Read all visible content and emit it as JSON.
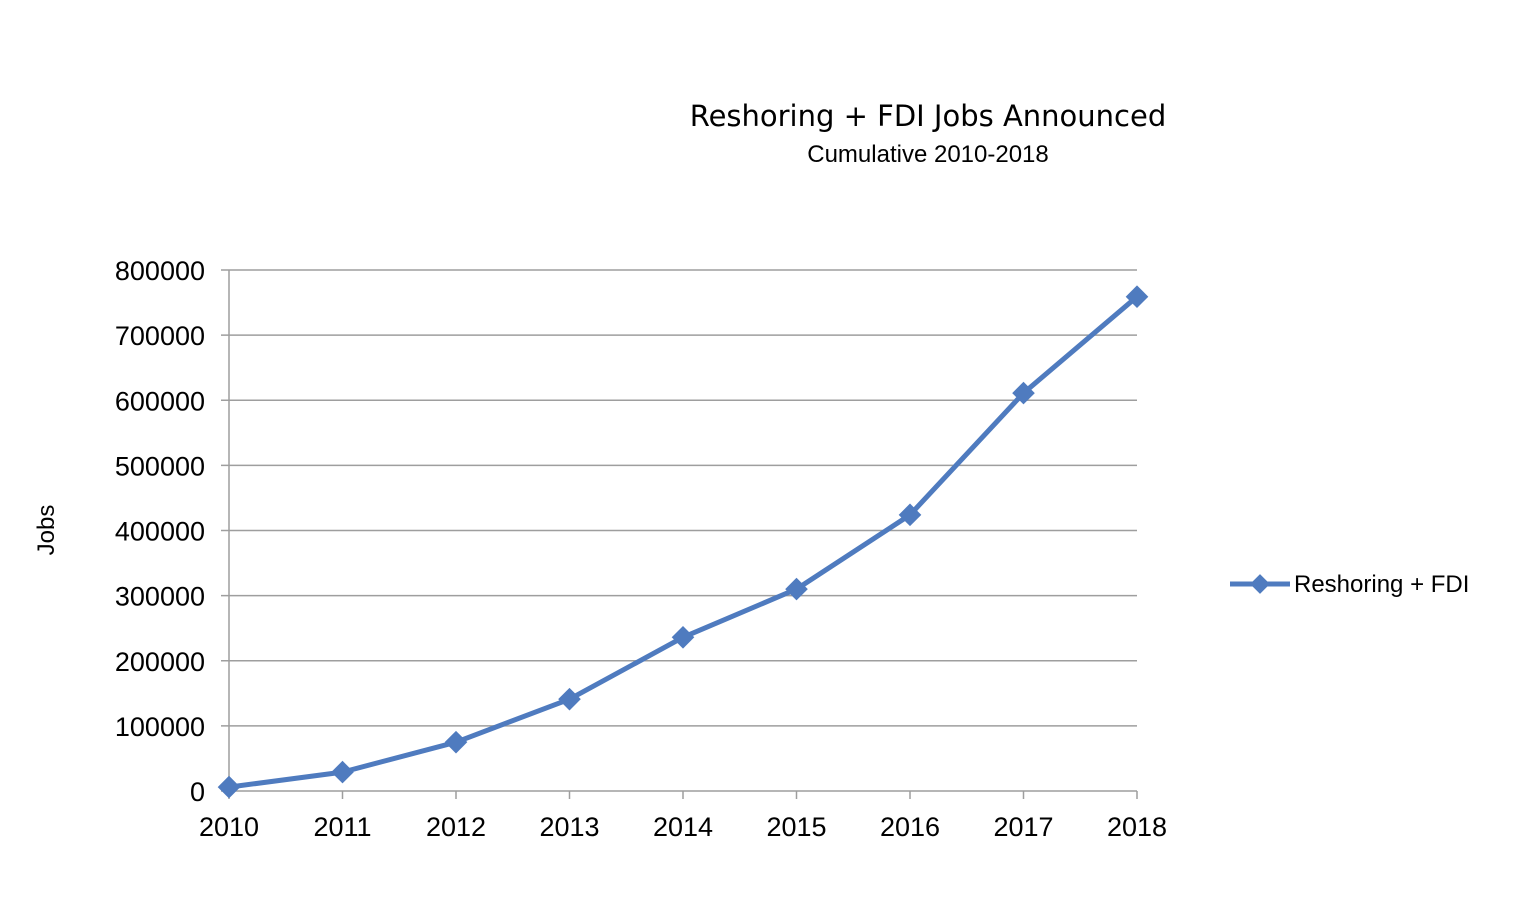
{
  "chart_data": {
    "type": "line",
    "title": "Reshoring + FDI Jobs Announced",
    "subtitle": "Cumulative 2010-2018",
    "xlabel": "",
    "ylabel": "Jobs",
    "categories": [
      "2010",
      "2011",
      "2012",
      "2013",
      "2014",
      "2015",
      "2016",
      "2017",
      "2018"
    ],
    "series": [
      {
        "name": "Reshoring + FDI",
        "values": [
          6000,
          29000,
          75000,
          141000,
          236000,
          310000,
          424000,
          611000,
          759000
        ],
        "color": "#4f7bbf"
      }
    ],
    "ylim": [
      0,
      800000
    ],
    "yticks": [
      "0",
      "100000",
      "200000",
      "300000",
      "400000",
      "500000",
      "600000",
      "700000",
      "800000"
    ],
    "grid": true,
    "legend_position": "right"
  }
}
